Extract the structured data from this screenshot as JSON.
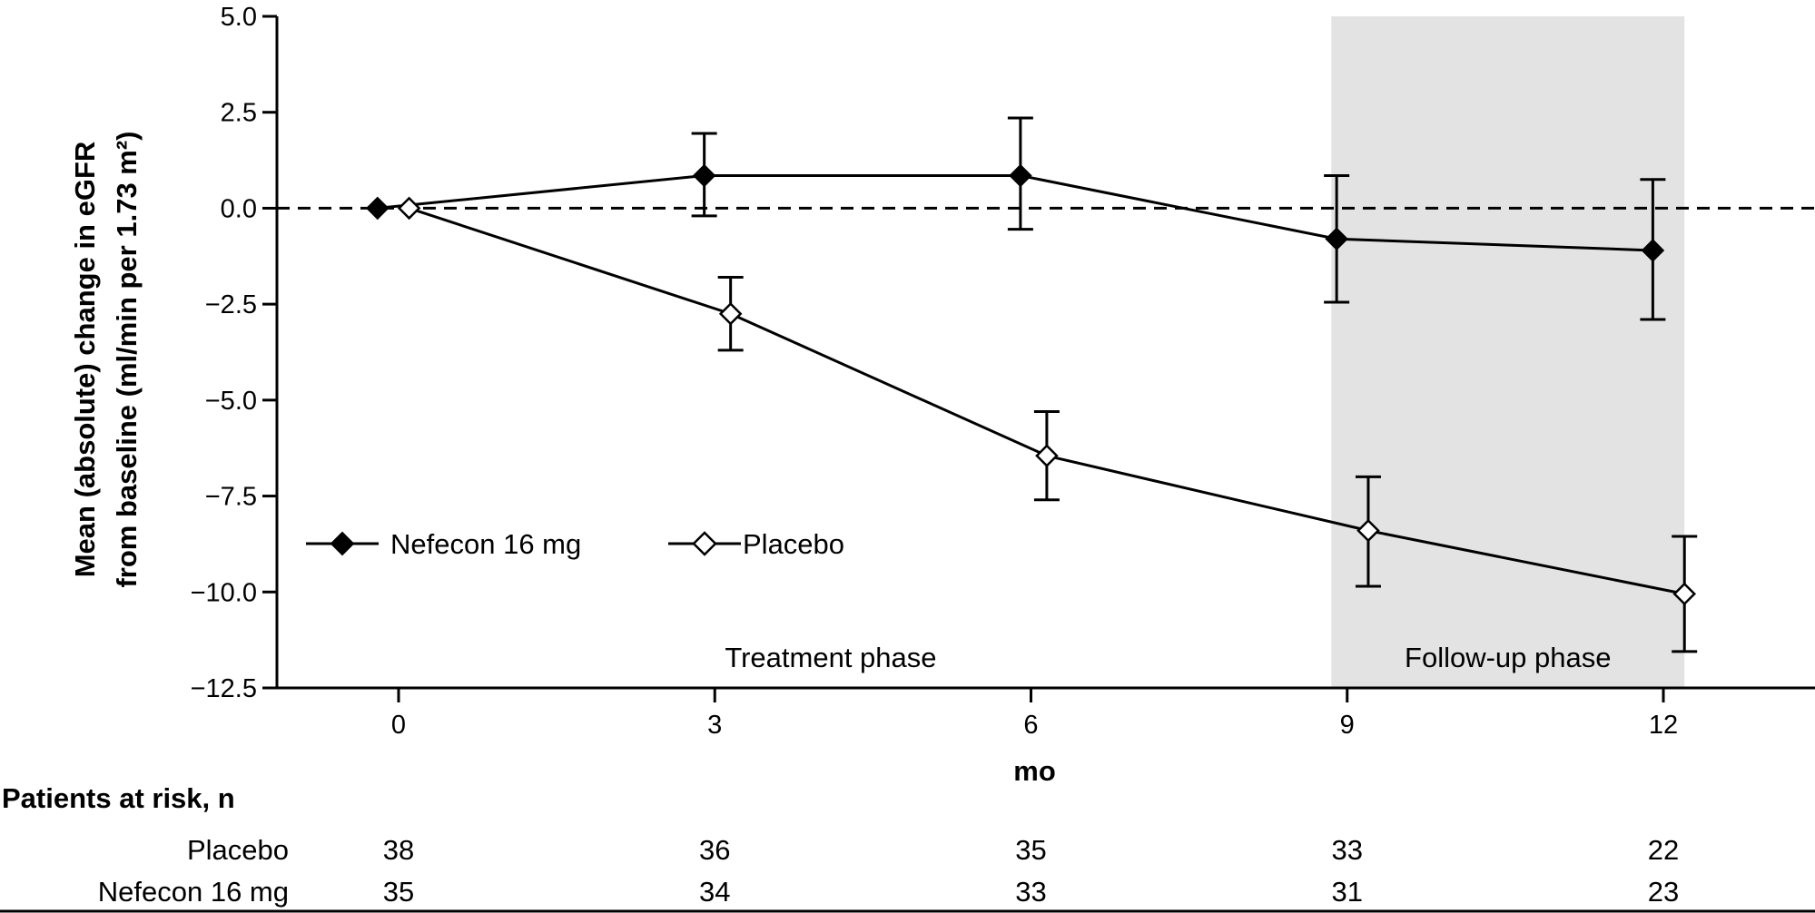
{
  "chart_data": {
    "type": "line",
    "ylabel_line1": "Mean (absolute) change in eGFR",
    "ylabel_line2": "from baseline (ml/min per 1.73 m²)",
    "xlabel": "mo",
    "xlim": [
      -1,
      13.5
    ],
    "ylim": [
      -12.5,
      5.0
    ],
    "x_ticks": [
      0,
      3,
      6,
      9,
      12
    ],
    "x_tick_labels": [
      "0",
      "3",
      "6",
      "9",
      "12"
    ],
    "y_ticks": [
      5.0,
      2.5,
      0.0,
      -2.5,
      -5.0,
      -7.5,
      -10.0,
      -12.5
    ],
    "y_tick_labels": [
      "5.0",
      "2.5",
      "0.0",
      "−2.5",
      "−5.0",
      "−7.5",
      "−10.0",
      "−12.5"
    ],
    "reference_line": 0.0,
    "shaded_region": {
      "x_from": 8.85,
      "x_to": 12.2,
      "color": "#e3e3e3"
    },
    "phase_labels": {
      "treatment": "Treatment phase",
      "followup": "Follow-up phase"
    },
    "legend_placement": "lower-left",
    "series": [
      {
        "name": "Nefecon 16 mg",
        "marker": "filled-diamond",
        "x": [
          -0.2,
          2.9,
          5.9,
          8.9,
          11.9
        ],
        "y": [
          0.0,
          0.85,
          0.85,
          -0.8,
          -1.1
        ],
        "err_low": [
          0.0,
          -0.2,
          -0.55,
          -2.45,
          -2.9
        ],
        "err_high": [
          0.0,
          1.95,
          2.35,
          0.85,
          0.75
        ]
      },
      {
        "name": "Placebo",
        "marker": "open-diamond",
        "x": [
          0.1,
          3.15,
          6.15,
          9.2,
          12.2
        ],
        "y": [
          0.0,
          -2.75,
          -6.45,
          -8.4,
          -10.05
        ],
        "err_low": [
          0.0,
          -3.7,
          -7.6,
          -9.85,
          -11.55
        ],
        "err_high": [
          0.0,
          -1.8,
          -5.3,
          -7.0,
          -8.55
        ]
      }
    ]
  },
  "risk_table": {
    "title": "Patients at risk, n",
    "rows": [
      {
        "label": "Placebo",
        "values": [
          "38",
          "36",
          "35",
          "33",
          "22"
        ]
      },
      {
        "label": "Nefecon 16 mg",
        "values": [
          "35",
          "34",
          "33",
          "31",
          "23"
        ]
      }
    ]
  }
}
